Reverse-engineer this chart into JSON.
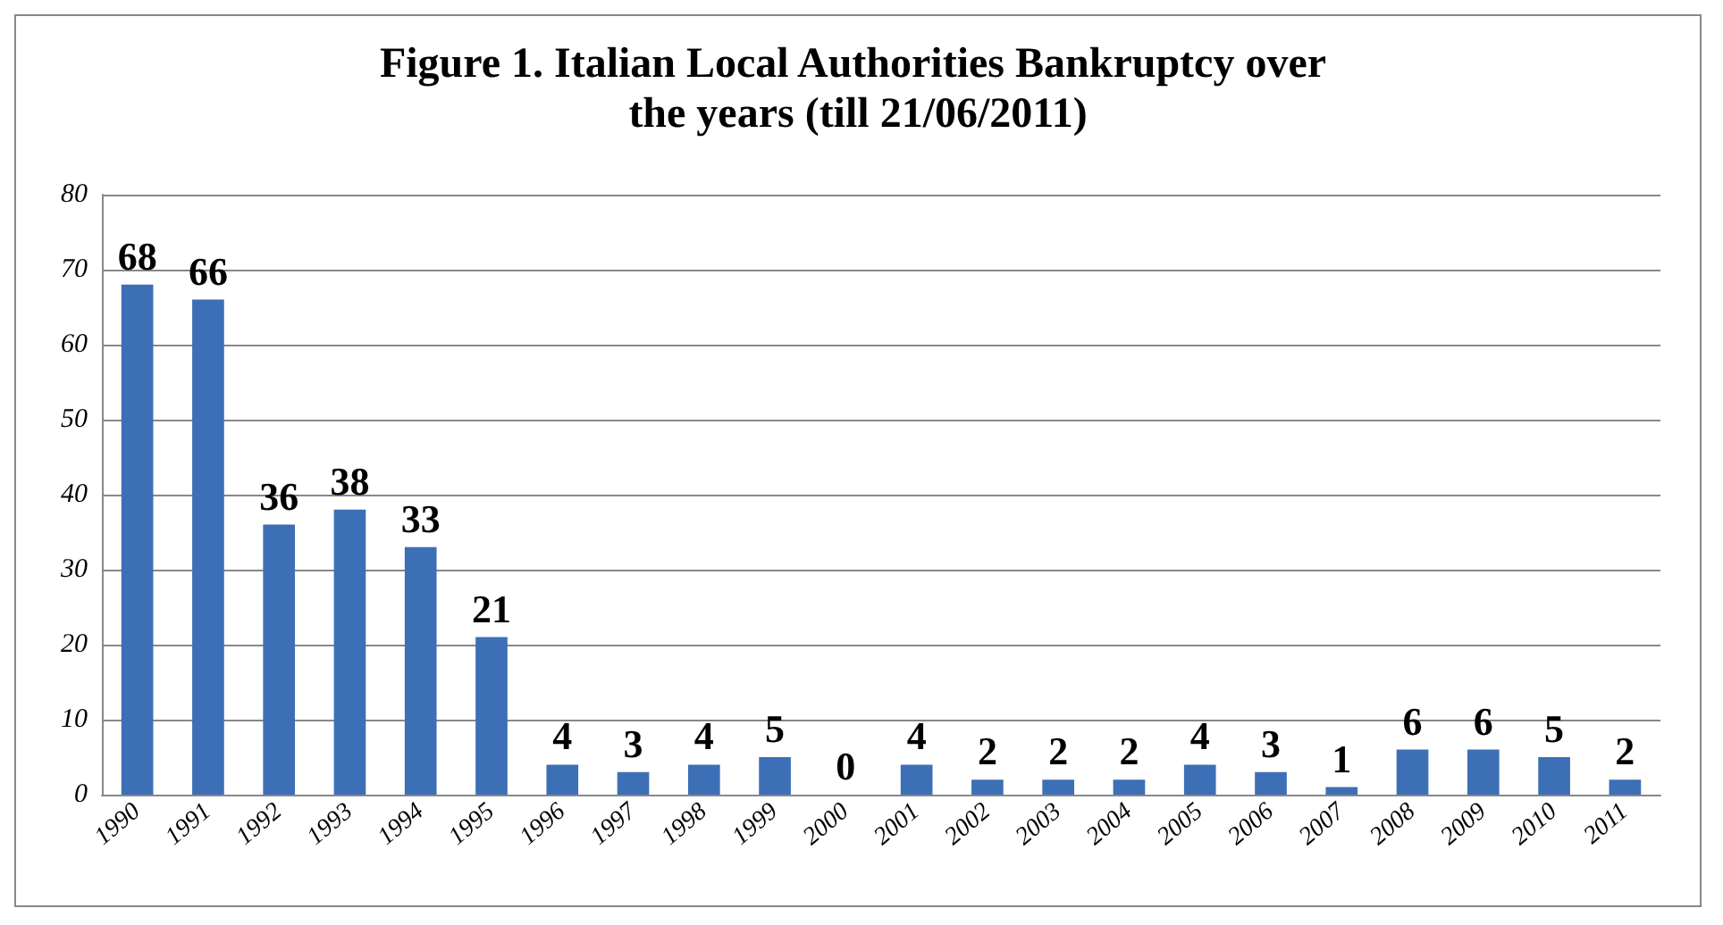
{
  "chart_data": {
    "type": "bar",
    "title": "Figure 1. Italian Local Authorities Bankruptcy over the years (till 21/06/2011)",
    "categories": [
      "1990",
      "1991",
      "1992",
      "1993",
      "1994",
      "1995",
      "1996",
      "1997",
      "1998",
      "1999",
      "2000",
      "2001",
      "2002",
      "2003",
      "2004",
      "2005",
      "2006",
      "2007",
      "2008",
      "2009",
      "2010",
      "2011"
    ],
    "values": [
      68,
      66,
      36,
      38,
      33,
      21,
      4,
      3,
      4,
      5,
      0,
      4,
      2,
      2,
      2,
      4,
      3,
      1,
      6,
      6,
      5,
      2
    ],
    "color": "#3d6fb6",
    "ylim": [
      0,
      80
    ],
    "yticks": [
      0,
      10,
      20,
      30,
      40,
      50,
      60,
      70,
      80
    ],
    "grid": "y",
    "data_labels": true
  }
}
